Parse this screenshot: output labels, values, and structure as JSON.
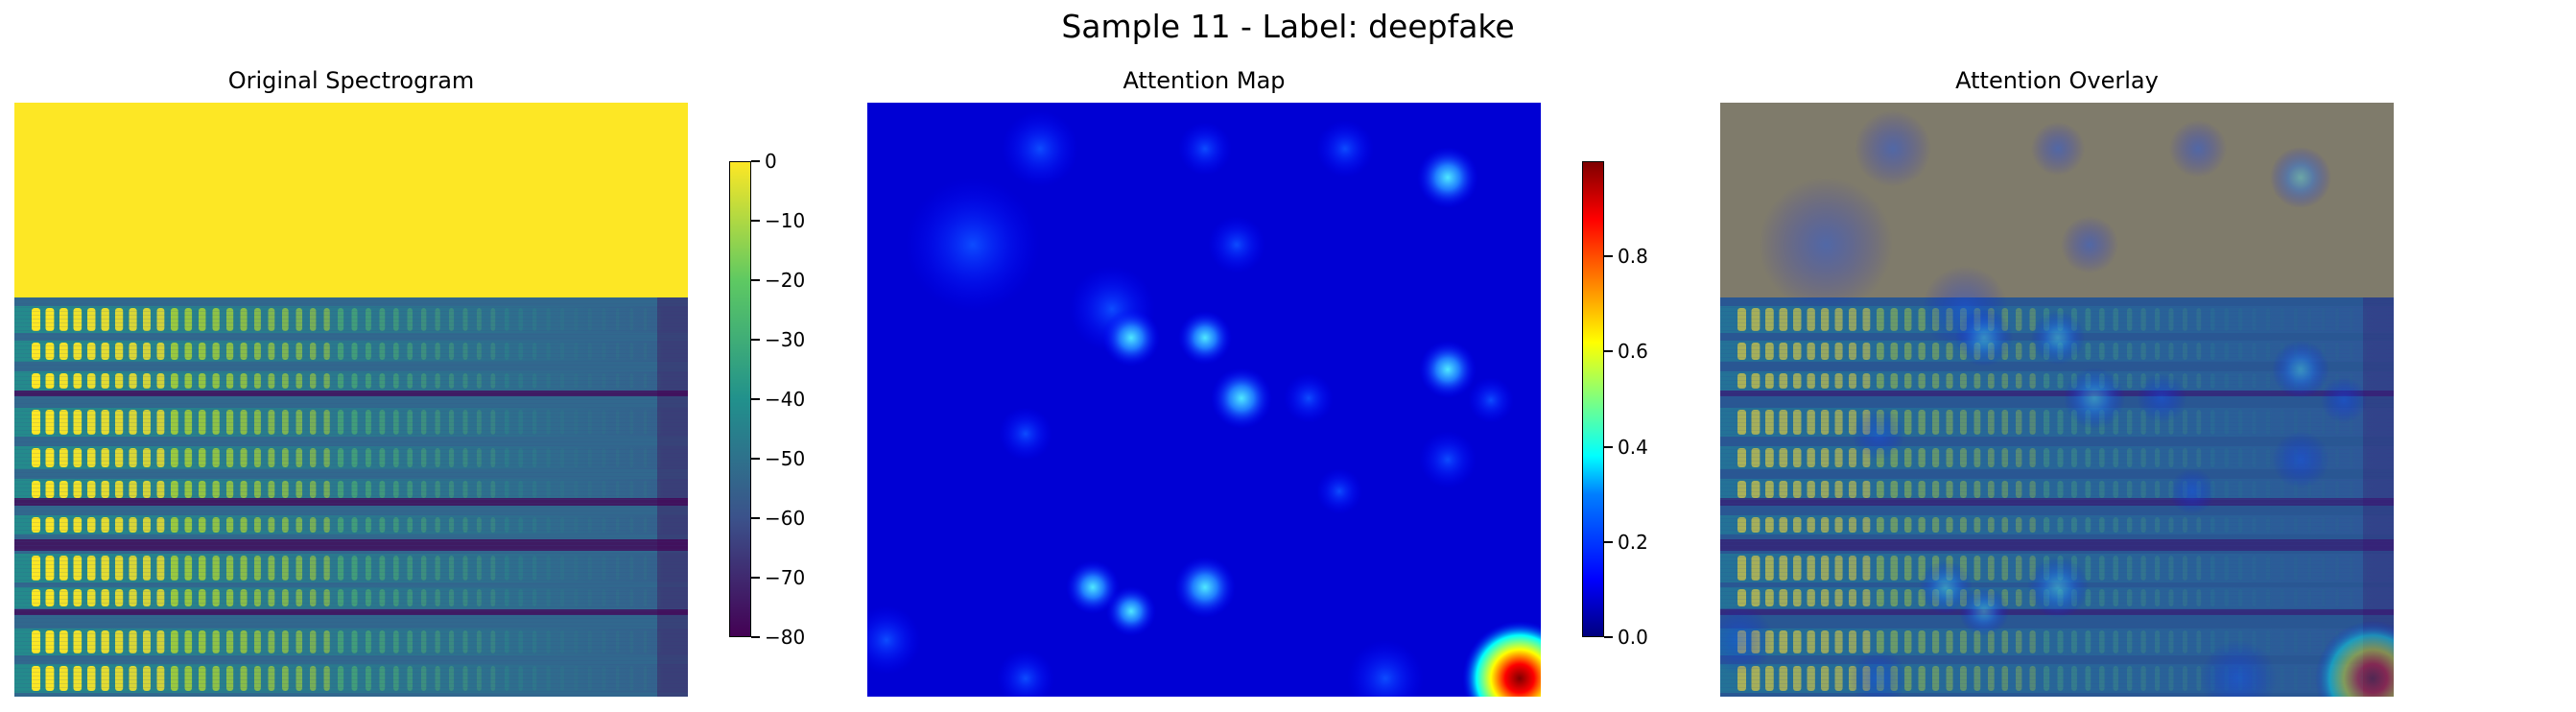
{
  "figure": {
    "title": "Sample 11 - Label: deepfake"
  },
  "chart_data": [
    {
      "type": "heatmap",
      "title": "Original Spectrogram",
      "colormap": "viridis",
      "colorbar": {
        "min": -80,
        "max": 0,
        "ticks": [
          "0",
          "−10",
          "−20",
          "−30",
          "−40",
          "−50",
          "−60",
          "−70",
          "−80"
        ]
      },
      "axes": "off"
    },
    {
      "type": "heatmap",
      "title": "Attention Map",
      "colormap": "jet",
      "colorbar": {
        "min": 0,
        "max": 1,
        "ticks": [
          "0.0",
          "0.2",
          "0.4",
          "0.6",
          "0.8"
        ]
      },
      "axes": "off"
    },
    {
      "type": "heatmap",
      "title": "Attention Overlay",
      "description_source": "spectrogram with attention map overlaid",
      "axes": "off"
    }
  ],
  "colors": {
    "viridis": [
      "#440154",
      "#3b528b",
      "#21918c",
      "#5ec962",
      "#fde725"
    ],
    "jet": [
      "#00007f",
      "#0000ff",
      "#00ffff",
      "#ffff00",
      "#ff0000",
      "#7f0000"
    ]
  }
}
